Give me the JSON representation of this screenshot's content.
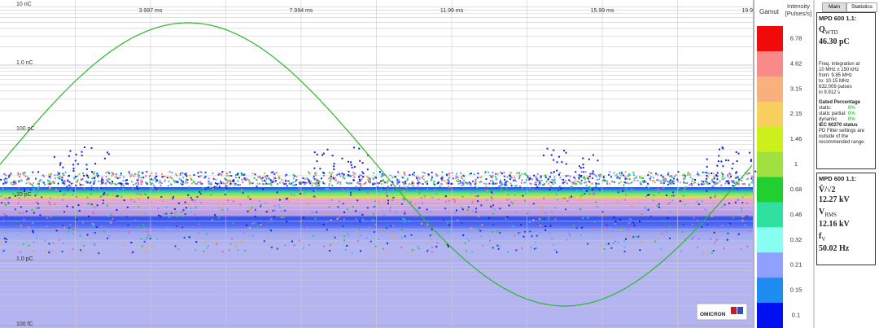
{
  "plot": {
    "y_labels": [
      "10 nC",
      "1.0 nC",
      "100 pC",
      "10 pC",
      "1.0 pC",
      "100 fC"
    ],
    "x_labels": [
      "3.997 ms",
      "7.994 ms",
      "11.99 ms",
      "15.99 ms",
      "19.9"
    ],
    "logo": "OMICRON"
  },
  "gamut": {
    "title": "Gamut",
    "intensity_title": [
      "Intensity",
      "[Pulses/s]"
    ],
    "levels": [
      6.78,
      4.62,
      3.15,
      2.15,
      1.46,
      1,
      0.68,
      0.46,
      0.32,
      0.21,
      0.15,
      0.1
    ]
  },
  "tabs": [
    "Main",
    "Statistics"
  ],
  "charge_panel": {
    "device": "MPD 600 1.1:",
    "symbol": "Q",
    "subscript": "WTD",
    "value": "46.30 pC",
    "info": [
      "Freq. integration at",
      "10 MHz ± 150 kHz",
      "from:  9.85 MHz",
      "to:     10.15 MHz",
      "632,009 pulses",
      "in 9.912 s"
    ],
    "gated_title": "Gated Percentage",
    "gated": [
      [
        "static:",
        "0%"
      ],
      [
        "static partial:",
        "0%"
      ],
      [
        "dynamic",
        "0%"
      ]
    ],
    "iec_title": "IEC 60270 status",
    "iec_text": "PD Filter settings are outside of the recommended range."
  },
  "voltage_panel": {
    "device": "MPD 600 1.1:",
    "peak_symbol": "V̂/√2",
    "peak_value": "12.27 kV",
    "rms_symbol": "V",
    "rms_subscript": "RMS",
    "rms_value": "12.16 kV",
    "freq_symbol": "f",
    "freq_subscript": "V",
    "freq_value": "50.02 Hz"
  }
}
